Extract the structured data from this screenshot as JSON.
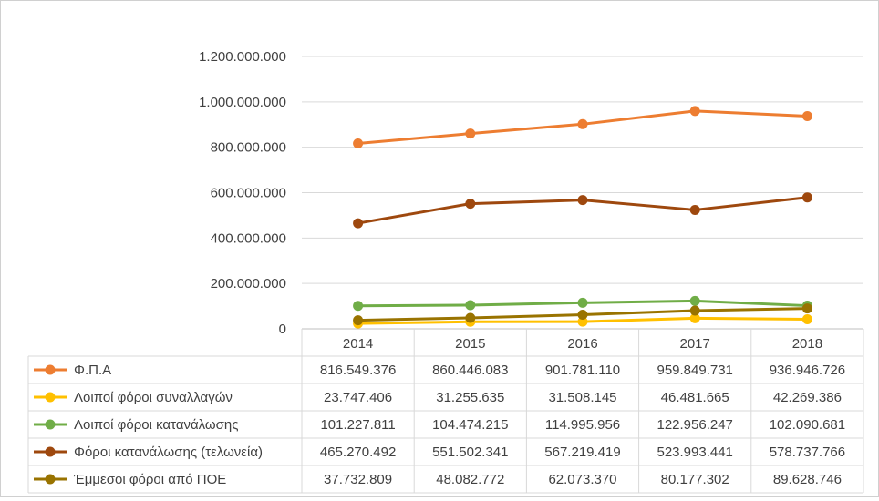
{
  "chart_data": {
    "type": "line",
    "title": "",
    "xlabel": "",
    "ylabel": "",
    "ylim": [
      0,
      1200000000
    ],
    "y_ticks": [
      0,
      200000000,
      400000000,
      600000000,
      800000000,
      1000000000,
      1200000000
    ],
    "y_tick_labels": [
      "0",
      "200.000.000",
      "400.000.000",
      "600.000.000",
      "800.000.000",
      "1.000.000.000",
      "1.200.000.000"
    ],
    "grid": true,
    "legend_placement": "data-table-left",
    "categories": [
      "2014",
      "2015",
      "2016",
      "2017",
      "2018"
    ],
    "series": [
      {
        "name": "Φ.Π.Α",
        "color": "#ED7D31",
        "values": [
          816549376,
          860446083,
          901781110,
          959849731,
          936946726
        ],
        "labels": [
          "816.549.376",
          "860.446.083",
          "901.781.110",
          "959.849.731",
          "936.946.726"
        ]
      },
      {
        "name": "Λοιποί φόροι συναλλαγών",
        "color": "#FFC000",
        "values": [
          23747406,
          31255635,
          31508145,
          46481665,
          42269386
        ],
        "labels": [
          "23.747.406",
          "31.255.635",
          "31.508.145",
          "46.481.665",
          "42.269.386"
        ]
      },
      {
        "name": "Λοιποί φόροι κατανάλωσης",
        "color": "#70AD47",
        "values": [
          101227811,
          104474215,
          114995956,
          122956247,
          102090681
        ],
        "labels": [
          "101.227.811",
          "104.474.215",
          "114.995.956",
          "122.956.247",
          "102.090.681"
        ]
      },
      {
        "name": "Φόροι κατανάλωσης (τελωνεία)",
        "color": "#9E480E",
        "values": [
          465270492,
          551502341,
          567219419,
          523993441,
          578737766
        ],
        "labels": [
          "465.270.492",
          "551.502.341",
          "567.219.419",
          "523.993.441",
          "578.737.766"
        ]
      },
      {
        "name": "Έμμεσοι φόροι από ΠΟΕ",
        "color": "#997300",
        "values": [
          37732809,
          48082772,
          62073370,
          80177302,
          89628746
        ],
        "labels": [
          "37.732.809",
          "48.082.772",
          "62.073.370",
          "80.177.302",
          "89.628.746"
        ]
      }
    ]
  }
}
